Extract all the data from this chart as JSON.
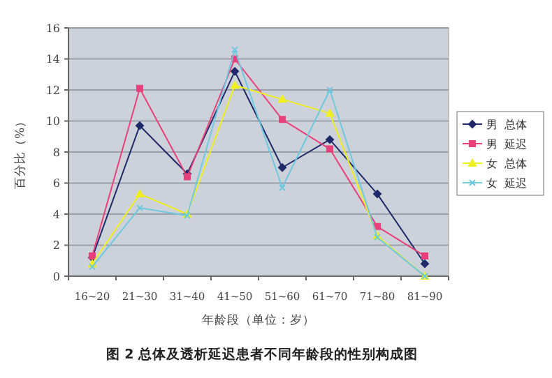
{
  "chart_data": {
    "type": "line",
    "title": "图 2 总体及透析延迟患者不同年龄段的性别构成图",
    "xlabel": "年龄段（单位：岁）",
    "ylabel": "百分比（%）",
    "categories": [
      "16~20",
      "21~30",
      "31~40",
      "41~50",
      "51~60",
      "61~70",
      "71~80",
      "81~90"
    ],
    "series": [
      {
        "name": "男  总体",
        "color": "#1f2a6b",
        "marker": "diamond",
        "values": [
          1.2,
          9.7,
          6.6,
          13.2,
          7.0,
          8.8,
          5.3,
          0.8
        ]
      },
      {
        "name": "男  延迟",
        "color": "#e8407a",
        "marker": "square",
        "values": [
          1.3,
          12.1,
          6.4,
          14.0,
          10.1,
          8.2,
          3.2,
          1.3
        ]
      },
      {
        "name": "女  总体",
        "color": "#f0f020",
        "marker": "triangle",
        "values": [
          0.8,
          5.3,
          4.0,
          12.3,
          11.4,
          10.5,
          2.6,
          0
        ]
      },
      {
        "name": "女  延迟",
        "color": "#6ec8e0",
        "marker": "cross",
        "values": [
          0.6,
          4.4,
          3.9,
          14.6,
          5.7,
          12.0,
          2.5,
          0
        ]
      }
    ],
    "ylim": [
      0,
      16
    ],
    "yticks": [
      0,
      2,
      4,
      6,
      8,
      10,
      12,
      14,
      16
    ],
    "grid": "y",
    "legend": "right"
  }
}
